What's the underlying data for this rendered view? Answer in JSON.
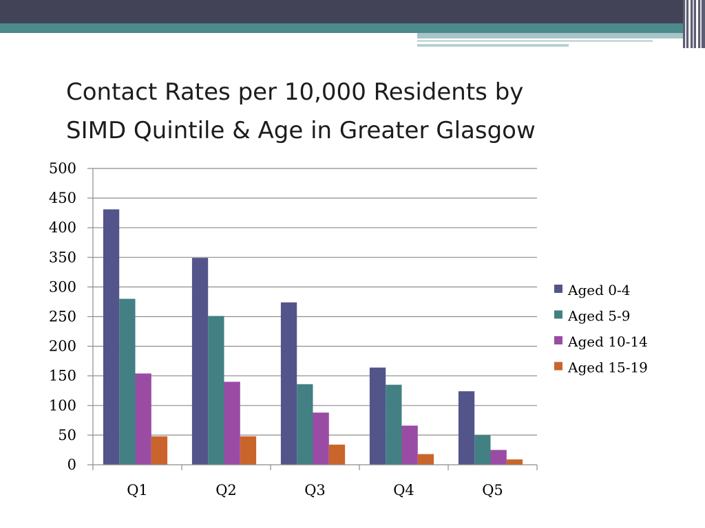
{
  "slide": {
    "title_line1": "Contact Rates per 10,000 Residents by",
    "title_line2": "SIMD Quintile & Age in Greater Glasgow"
  },
  "theme": {
    "header_dark": "#434358",
    "header_teal": "#4c8a8b",
    "header_light": "#a8c4c6"
  },
  "chart_data": {
    "type": "bar",
    "title": "",
    "xlabel": "",
    "ylabel": "",
    "categories": [
      "Q1",
      "Q2",
      "Q3",
      "Q4",
      "Q5"
    ],
    "series": [
      {
        "name": "Aged 0-4",
        "color": "#53548a",
        "values": [
          431,
          349,
          274,
          164,
          124
        ]
      },
      {
        "name": "Aged 5-9",
        "color": "#428083",
        "values": [
          280,
          251,
          136,
          135,
          50
        ]
      },
      {
        "name": "Aged 10-14",
        "color": "#9a4ca5",
        "values": [
          154,
          140,
          88,
          66,
          25
        ]
      },
      {
        "name": "Aged 15-19",
        "color": "#c9652a",
        "values": [
          48,
          48,
          34,
          18,
          9
        ]
      }
    ],
    "ylim": [
      0,
      500
    ],
    "yticks": [
      0,
      50,
      100,
      150,
      200,
      250,
      300,
      350,
      400,
      450,
      500
    ],
    "grid": true,
    "legend_position": "right"
  }
}
